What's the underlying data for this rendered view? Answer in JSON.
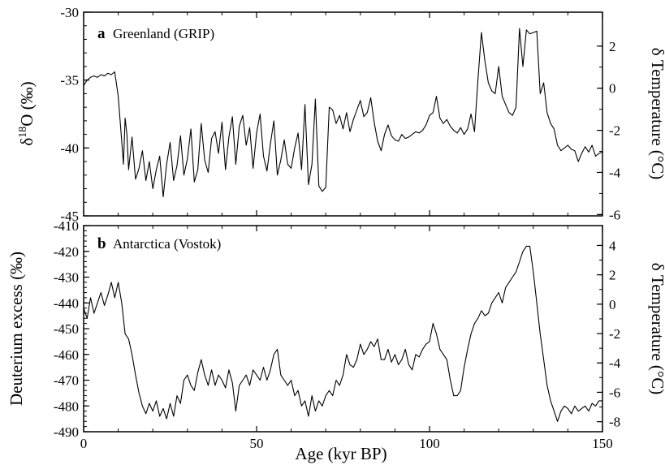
{
  "chart_data": [
    {
      "type": "line",
      "panel_letter": "a",
      "title": "Greenland (GRIP)",
      "ylabel": "δ18O (‰)",
      "ylabel_right": "δ Temperature (°C)",
      "xlim": [
        0,
        150
      ],
      "ylim": [
        -45,
        -30
      ],
      "y_ticks": [
        -45,
        -40,
        -35,
        -30
      ],
      "y2_ticks": [
        -6,
        -4,
        -2,
        0,
        2
      ],
      "y2_mapping": {
        "y_at_0": -35.6,
        "per_degree": 1.55
      },
      "color": "#000000",
      "series": [
        {
          "x": [
            0,
            1,
            2,
            3,
            4,
            5,
            6,
            7,
            8,
            9,
            10,
            11,
            11.5,
            12,
            12.5,
            13,
            14,
            15,
            16,
            17,
            18,
            19,
            20,
            21,
            22,
            23,
            24,
            25,
            26,
            27,
            28,
            29,
            30,
            31,
            32,
            33,
            34,
            35,
            36,
            37,
            38,
            39,
            40,
            41,
            42,
            43,
            44,
            45,
            46,
            47,
            48,
            49,
            50,
            51,
            52,
            53,
            54,
            55,
            56,
            57,
            58,
            59,
            60,
            61,
            62,
            63,
            64,
            65,
            66,
            67,
            68,
            69,
            70,
            71,
            72,
            73,
            74,
            75,
            76,
            77,
            78,
            79,
            80,
            81,
            82,
            83,
            84,
            85,
            86,
            87,
            88,
            89,
            90,
            91,
            92,
            93,
            94,
            95,
            96,
            97,
            98,
            99,
            100,
            101,
            102,
            103,
            104,
            105,
            106,
            107,
            108,
            109,
            110,
            111,
            112,
            113,
            114,
            115,
            116,
            117,
            118,
            119,
            120,
            121,
            122,
            123,
            124,
            125,
            126,
            127,
            128,
            129,
            130,
            131,
            132,
            133,
            134,
            135,
            136,
            137,
            138,
            139,
            140,
            141,
            142,
            143,
            144,
            145,
            146,
            147,
            148,
            149,
            150
          ],
          "y": [
            -35.4,
            -35.0,
            -34.8,
            -34.7,
            -34.8,
            -34.6,
            -34.7,
            -34.5,
            -34.6,
            -34.4,
            -36.2,
            -39.5,
            -41.2,
            -37.8,
            -39.0,
            -41.6,
            -39.2,
            -42.3,
            -41.5,
            -40.2,
            -42.4,
            -41.0,
            -43.0,
            -41.6,
            -40.6,
            -43.6,
            -41.2,
            -39.6,
            -42.4,
            -41.3,
            -39.1,
            -42.0,
            -40.8,
            -38.6,
            -42.5,
            -41.6,
            -38.2,
            -40.9,
            -41.8,
            -39.3,
            -38.8,
            -40.4,
            -38.1,
            -41.6,
            -39.2,
            -37.7,
            -41.2,
            -38.4,
            -37.6,
            -39.8,
            -38.5,
            -41.5,
            -38.9,
            -37.5,
            -40.6,
            -41.7,
            -39.7,
            -38.0,
            -42.0,
            -40.9,
            -39.4,
            -41.2,
            -41.5,
            -40.0,
            -38.9,
            -41.6,
            -36.8,
            -42.7,
            -41.2,
            -36.4,
            -42.8,
            -43.2,
            -42.9,
            -37.0,
            -37.2,
            -38.2,
            -37.6,
            -38.6,
            -37.4,
            -38.8,
            -37.9,
            -37.2,
            -36.5,
            -37.7,
            -37.4,
            -36.3,
            -38.1,
            -39.5,
            -40.2,
            -39.0,
            -38.3,
            -39.1,
            -39.4,
            -39.5,
            -39.0,
            -39.3,
            -39.2,
            -39.0,
            -38.8,
            -38.9,
            -38.7,
            -38.3,
            -37.6,
            -37.4,
            -36.2,
            -37.8,
            -38.2,
            -37.9,
            -38.4,
            -38.7,
            -38.9,
            -38.5,
            -39.0,
            -38.6,
            -37.5,
            -38.8,
            -35.0,
            -31.5,
            -33.6,
            -35.2,
            -35.8,
            -36.0,
            -34.0,
            -36.2,
            -36.8,
            -37.4,
            -37.6,
            -37.0,
            -31.2,
            -34.0,
            -31.3,
            -31.6,
            -31.5,
            -31.4,
            -36.0,
            -35.2,
            -37.4,
            -38.2,
            -38.6,
            -39.8,
            -40.2,
            -40.0,
            -39.8,
            -40.1,
            -40.2,
            -41.0,
            -40.4,
            -39.9,
            -40.3,
            -39.8,
            -40.6,
            -40.4,
            -40.3
          ]
        }
      ]
    },
    {
      "type": "line",
      "panel_letter": "b",
      "title": "Antarctica (Vostok)",
      "ylabel": "Deuterium excess (‰)",
      "ylabel_right": "δ Temperature (°C)",
      "xlabel": "Age (kyr BP)",
      "xlim": [
        0,
        150
      ],
      "x_ticks": [
        0,
        50,
        100,
        150
      ],
      "ylim": [
        -490,
        -410
      ],
      "y_ticks": [
        -490,
        -480,
        -470,
        -460,
        -450,
        -440,
        -430,
        -420,
        -410
      ],
      "y2_ticks": [
        -8,
        -6,
        -4,
        -2,
        0,
        2,
        4
      ],
      "y2_mapping": {
        "y_at_0": -440.5,
        "per_degree": 5.7
      },
      "color": "#000000",
      "series": [
        {
          "x": [
            0,
            1,
            2,
            3,
            4,
            5,
            6,
            7,
            8,
            9,
            10,
            11,
            12,
            13,
            14,
            15,
            16,
            17,
            18,
            19,
            20,
            21,
            22,
            23,
            24,
            25,
            26,
            27,
            28,
            29,
            30,
            31,
            32,
            33,
            34,
            35,
            36,
            37,
            38,
            39,
            40,
            41,
            42,
            43,
            44,
            45,
            46,
            47,
            48,
            49,
            50,
            51,
            52,
            53,
            54,
            55,
            56,
            57,
            58,
            59,
            60,
            61,
            62,
            63,
            64,
            65,
            66,
            67,
            68,
            69,
            70,
            71,
            72,
            73,
            74,
            75,
            76,
            77,
            78,
            79,
            80,
            81,
            82,
            83,
            84,
            85,
            86,
            87,
            88,
            89,
            90,
            91,
            92,
            93,
            94,
            95,
            96,
            97,
            98,
            99,
            100,
            101,
            102,
            103,
            104,
            105,
            106,
            107,
            108,
            109,
            110,
            111,
            112,
            113,
            114,
            115,
            116,
            117,
            118,
            119,
            120,
            121,
            122,
            123,
            124,
            125,
            126,
            127,
            128,
            129,
            130,
            131,
            132,
            133,
            134,
            135,
            136,
            137,
            138,
            139,
            140,
            141,
            142,
            143,
            144,
            145,
            146,
            147,
            148,
            149,
            150
          ],
          "y": [
            -442,
            -446,
            -438,
            -444,
            -440,
            -436,
            -441,
            -437,
            -432,
            -438,
            -432,
            -440,
            -452,
            -454,
            -460,
            -468,
            -475,
            -480,
            -483,
            -479,
            -482,
            -478,
            -484,
            -481,
            -485,
            -479,
            -484,
            -476,
            -479,
            -470,
            -468,
            -472,
            -474,
            -467,
            -462,
            -468,
            -472,
            -466,
            -472,
            -468,
            -470,
            -473,
            -466,
            -471,
            -482,
            -472,
            -470,
            -468,
            -472,
            -466,
            -468,
            -470,
            -465,
            -470,
            -466,
            -460,
            -458,
            -468,
            -470,
            -472,
            -470,
            -476,
            -474,
            -480,
            -478,
            -484,
            -476,
            -482,
            -478,
            -480,
            -476,
            -474,
            -476,
            -470,
            -472,
            -468,
            -460,
            -464,
            -465,
            -462,
            -456,
            -460,
            -458,
            -455,
            -457,
            -454,
            -462,
            -462,
            -458,
            -463,
            -460,
            -464,
            -462,
            -458,
            -464,
            -466,
            -460,
            -461,
            -458,
            -456,
            -455,
            -448,
            -452,
            -458,
            -460,
            -462,
            -470,
            -476,
            -476,
            -474,
            -465,
            -458,
            -452,
            -448,
            -446,
            -443,
            -445,
            -444,
            -440,
            -438,
            -436,
            -440,
            -434,
            -432,
            -430,
            -428,
            -424,
            -420,
            -418,
            -418,
            -428,
            -440,
            -452,
            -462,
            -472,
            -478,
            -482,
            -486,
            -482,
            -480,
            -481,
            -483,
            -480,
            -482,
            -481,
            -480,
            -482,
            -479,
            -480,
            -478,
            -478
          ]
        }
      ]
    }
  ]
}
